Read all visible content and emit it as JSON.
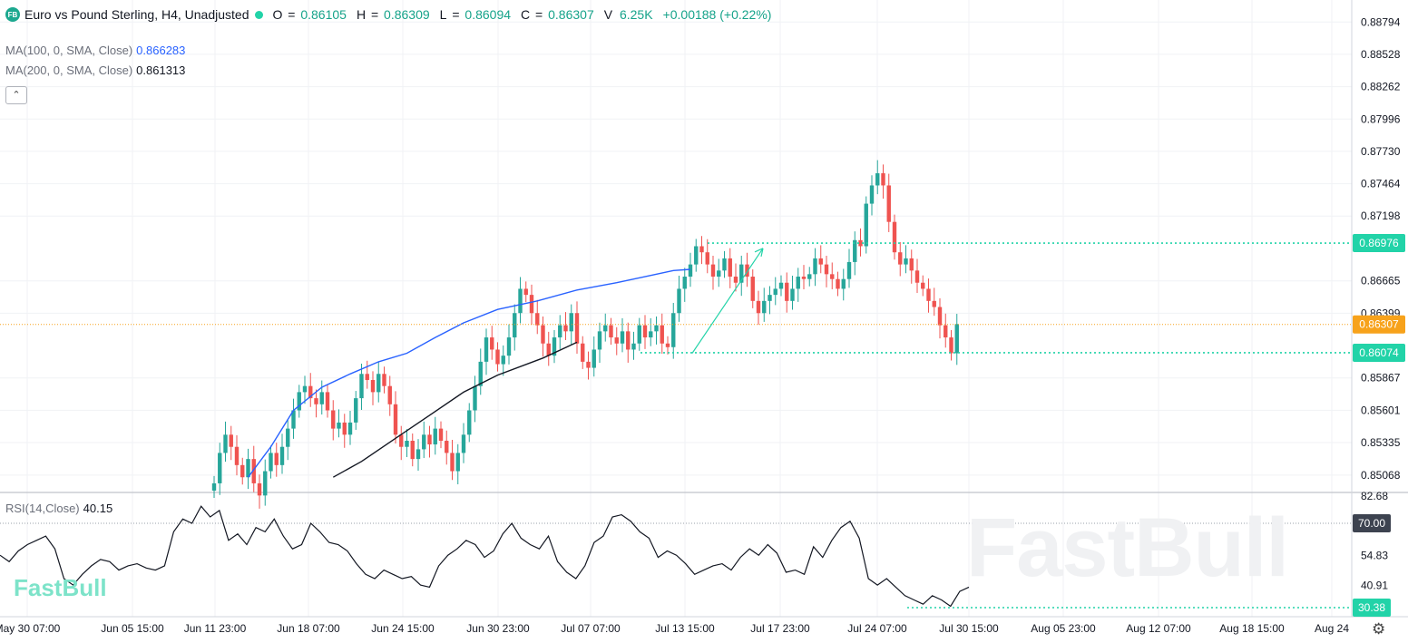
{
  "header": {
    "logo_text": "FB",
    "title": "Euro vs Pound Sterling, H4, Unadjusted",
    "open_label": "O",
    "open": "0.86105",
    "high_label": "H",
    "high": "0.86309",
    "low_label": "L",
    "low": "0.86094",
    "close_label": "C",
    "close": "0.86307",
    "volume_label": "V",
    "volume": "6.25K",
    "change": "+0.00188 (+0.22%)"
  },
  "indicators": {
    "ma100": {
      "label": "MA(100, 0, SMA, Close)",
      "value": "0.866283",
      "color": "#2962ff"
    },
    "ma200": {
      "label": "MA(200, 0, SMA, Close)",
      "value": "0.861313",
      "color": "#131722"
    },
    "rsi": {
      "label": "RSI(14,Close)",
      "value": "40.15"
    }
  },
  "brand": {
    "logo": "FastBull",
    "watermark": "FastBull"
  },
  "colors": {
    "up": "#26a69a",
    "down": "#ef5350",
    "accent": "#22d3a8",
    "close_line": "#f7a21b"
  },
  "chart_data": [
    {
      "type": "candlestick",
      "price_axis": {
        "ticks": [
          "0.88794",
          "0.88528",
          "0.88262",
          "0.87996",
          "0.87730",
          "0.87464",
          "0.87198",
          "0.86665",
          "0.86399",
          "0.85867",
          "0.85601",
          "0.85335",
          "0.85068"
        ],
        "range": [
          0.84925,
          0.88975
        ]
      },
      "time_axis": {
        "labels": [
          "May 30 07:00",
          "Jun 05 15:00",
          "Jun 11 23:00",
          "Jun 18 07:00",
          "Jun 24 15:00",
          "Jun 30 23:00",
          "Jul 07 07:00",
          "Jul 13 15:00",
          "Jul 17 23:00",
          "Jul 24 07:00",
          "Jul 30 15:00",
          "Aug 05 23:00",
          "Aug 12 07:00",
          "Aug 18 15:00",
          "Aug 24"
        ]
      },
      "price_labels": [
        {
          "value": 0.86976,
          "text": "0.86976",
          "kind": "resistance"
        },
        {
          "value": 0.86307,
          "text": "0.86307",
          "kind": "last"
        },
        {
          "value": 0.86074,
          "text": "0.86074",
          "kind": "support"
        }
      ],
      "closes": [
        0.85,
        0.8525,
        0.854,
        0.853,
        0.8515,
        0.8505,
        0.852,
        0.85,
        0.849,
        0.851,
        0.8525,
        0.8515,
        0.853,
        0.8545,
        0.856,
        0.8575,
        0.858,
        0.857,
        0.8565,
        0.8575,
        0.856,
        0.8545,
        0.855,
        0.854,
        0.855,
        0.857,
        0.859,
        0.8585,
        0.8575,
        0.859,
        0.858,
        0.8565,
        0.854,
        0.853,
        0.8535,
        0.852,
        0.8528,
        0.854,
        0.8532,
        0.8545,
        0.8535,
        0.8525,
        0.851,
        0.8525,
        0.854,
        0.856,
        0.858,
        0.86,
        0.862,
        0.861,
        0.8598,
        0.8605,
        0.862,
        0.864,
        0.866,
        0.8655,
        0.864,
        0.863,
        0.8615,
        0.8605,
        0.862,
        0.863,
        0.8625,
        0.864,
        0.8615,
        0.86,
        0.8595,
        0.861,
        0.8625,
        0.863,
        0.862,
        0.8615,
        0.8625,
        0.861,
        0.8615,
        0.863,
        0.862,
        0.8625,
        0.863,
        0.8615,
        0.8612,
        0.864,
        0.866,
        0.867,
        0.868,
        0.8695,
        0.869,
        0.868,
        0.867,
        0.8675,
        0.8685,
        0.867,
        0.8665,
        0.868,
        0.867,
        0.865,
        0.864,
        0.865,
        0.8655,
        0.866,
        0.8665,
        0.865,
        0.866,
        0.867,
        0.8668,
        0.8672,
        0.8685,
        0.868,
        0.8672,
        0.8668,
        0.866,
        0.8668,
        0.8682,
        0.87,
        0.8695,
        0.873,
        0.8745,
        0.8755,
        0.8745,
        0.8715,
        0.869,
        0.868,
        0.8685,
        0.8675,
        0.8665,
        0.866,
        0.865,
        0.8645,
        0.863,
        0.862,
        0.8607,
        0.8631
      ],
      "series": [
        {
          "name": "MA(100, 0, SMA, Close)",
          "values": [
            [
              6,
              0.8505
            ],
            [
              10,
              0.853
            ],
            [
              14,
              0.856
            ],
            [
              19,
              0.8579
            ],
            [
              24,
              0.859
            ],
            [
              29,
              0.86
            ],
            [
              34,
              0.8607
            ],
            [
              39,
              0.862
            ],
            [
              44,
              0.8632
            ],
            [
              50,
              0.8643
            ],
            [
              57,
              0.865
            ],
            [
              64,
              0.8659
            ],
            [
              71,
              0.8665
            ],
            [
              77,
              0.8671
            ],
            [
              81,
              0.8675
            ],
            [
              84,
              0.8676
            ]
          ]
        },
        {
          "name": "MA(200, 0, SMA, Close)",
          "values": [
            [
              21,
              0.8505
            ],
            [
              26,
              0.8518
            ],
            [
              32,
              0.8537
            ],
            [
              38,
              0.8556
            ],
            [
              44,
              0.8575
            ],
            [
              50,
              0.8589
            ],
            [
              58,
              0.8603
            ],
            [
              64,
              0.8616
            ]
          ]
        }
      ],
      "projection": {
        "from": [
          84,
          0.8607
        ],
        "to": [
          90,
          0.8697
        ]
      }
    },
    {
      "type": "line",
      "name": "RSI(14,Close)",
      "y_axis": {
        "ticks": [
          "82.68",
          "70.00",
          "54.83",
          "40.91",
          "30.38"
        ],
        "range": [
          30.38,
          82.68
        ]
      },
      "levels": [
        70.0,
        30.38
      ],
      "values": [
        55,
        52,
        57,
        60,
        62,
        64,
        58,
        44,
        41,
        46,
        50,
        53,
        52,
        48,
        50,
        51,
        49,
        48,
        50,
        66,
        72,
        70,
        78,
        73,
        76,
        62,
        65,
        60,
        68,
        66,
        72,
        64,
        58,
        60,
        70,
        66,
        61,
        60,
        57,
        51,
        46,
        44,
        48,
        46,
        44,
        45,
        41,
        40,
        50,
        55,
        58,
        62,
        60,
        54,
        57,
        65,
        70,
        63,
        60,
        58,
        64,
        52,
        47,
        44,
        50,
        61,
        64,
        73,
        74,
        71,
        66,
        63,
        54,
        57,
        55,
        51,
        46,
        48,
        50,
        51,
        48,
        54,
        58,
        55,
        60,
        56,
        47,
        48,
        46,
        59,
        54,
        62,
        68,
        71,
        63,
        44,
        41,
        44,
        40,
        36,
        34,
        32,
        36,
        34,
        31,
        38,
        40
      ]
    }
  ]
}
